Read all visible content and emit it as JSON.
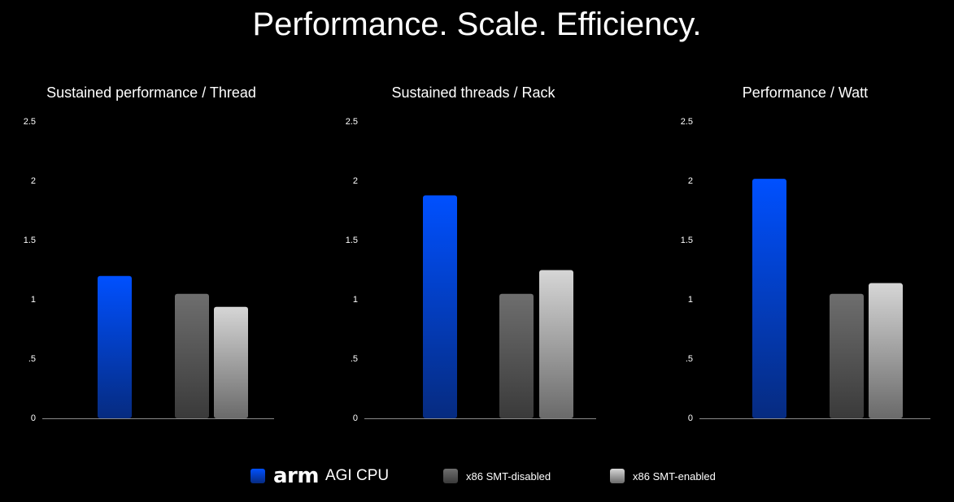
{
  "page": {
    "title": "Performance. Scale. Efficiency."
  },
  "colors": {
    "arm_top": "#0050ff",
    "arm_bottom": "#062b80",
    "smt_disabled_top": "#6e6e6e",
    "smt_disabled_bottom": "#3a3a3a",
    "smt_enabled_top": "#d6d6d6",
    "smt_enabled_bottom": "#6a6a6a",
    "axis": "#8a8a8a"
  },
  "legend": {
    "arm_brand": "arm",
    "arm_product": "AGI CPU",
    "smt_disabled": "x86 SMT-disabled",
    "smt_enabled": "x86 SMT-enabled"
  },
  "chart_data": [
    {
      "type": "bar",
      "title": "Sustained performance / Thread",
      "categories": [
        "arm AGI CPU",
        "x86 SMT-disabled",
        "x86 SMT-enabled"
      ],
      "values": [
        1.2,
        1.05,
        0.94
      ],
      "ylim": [
        0,
        2.5
      ],
      "yticks": [
        0,
        0.5,
        1,
        1.5,
        2,
        2.5
      ],
      "ytick_labels": [
        "0",
        ".5",
        "1",
        "1.5",
        "2",
        "2.5"
      ],
      "grid": false,
      "xlabel": "",
      "ylabel": ""
    },
    {
      "type": "bar",
      "title": "Sustained threads / Rack",
      "categories": [
        "arm AGI CPU",
        "x86 SMT-disabled",
        "x86 SMT-enabled"
      ],
      "values": [
        1.88,
        1.05,
        1.25
      ],
      "ylim": [
        0,
        2.5
      ],
      "yticks": [
        0,
        0.5,
        1,
        1.5,
        2,
        2.5
      ],
      "ytick_labels": [
        "0",
        ".5",
        "1",
        "1.5",
        "2",
        "2.5"
      ],
      "grid": false,
      "xlabel": "",
      "ylabel": ""
    },
    {
      "type": "bar",
      "title": "Performance / Watt",
      "categories": [
        "arm AGI CPU",
        "x86 SMT-disabled",
        "x86 SMT-enabled"
      ],
      "values": [
        2.02,
        1.05,
        1.14
      ],
      "ylim": [
        0,
        2.5
      ],
      "yticks": [
        0,
        0.5,
        1,
        1.5,
        2,
        2.5
      ],
      "ytick_labels": [
        "0",
        ".5",
        "1",
        "1.5",
        "2",
        "2.5"
      ],
      "grid": false,
      "xlabel": "",
      "ylabel": ""
    }
  ]
}
